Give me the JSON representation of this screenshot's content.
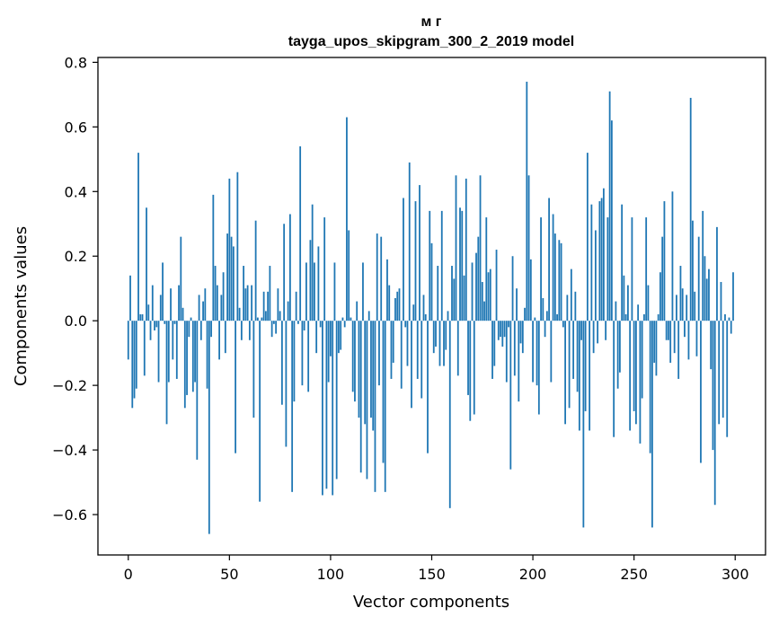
{
  "chart_data": {
    "type": "bar",
    "title_line1": "м г",
    "title_line2": "tayga_upos_skipgram_300_2_2019 model",
    "xlabel": "Vector components",
    "ylabel": "Components values",
    "xlim": [
      -15,
      315
    ],
    "ylim": [
      -0.725,
      0.815
    ],
    "xticks": [
      0,
      50,
      100,
      150,
      200,
      250,
      300
    ],
    "xtick_labels": [
      "0",
      "50",
      "100",
      "150",
      "200",
      "250",
      "300"
    ],
    "yticks": [
      -0.6,
      -0.4,
      -0.2,
      0.0,
      0.2,
      0.4,
      0.6,
      0.8
    ],
    "ytick_labels": [
      "−0.6",
      "−0.4",
      "−0.2",
      "0.0",
      "0.2",
      "0.4",
      "0.6",
      "0.8"
    ],
    "bar_color": "#1f77b4",
    "values": [
      -0.12,
      0.14,
      -0.27,
      -0.24,
      -0.21,
      0.52,
      0.02,
      0.02,
      -0.17,
      0.35,
      0.05,
      -0.06,
      0.11,
      -0.03,
      -0.02,
      -0.19,
      0.08,
      0.18,
      -0.01,
      -0.32,
      -0.19,
      0.1,
      -0.12,
      -0.01,
      -0.18,
      0.11,
      0.26,
      0.04,
      -0.27,
      -0.23,
      -0.05,
      0.01,
      -0.22,
      -0.19,
      -0.43,
      0.08,
      -0.06,
      0.06,
      0.1,
      -0.21,
      -0.66,
      -0.05,
      0.39,
      0.17,
      0.11,
      -0.12,
      0.08,
      0.15,
      -0.1,
      0.27,
      0.44,
      0.26,
      0.23,
      -0.41,
      0.46,
      0.04,
      -0.06,
      0.17,
      0.1,
      0.11,
      -0.06,
      0.11,
      -0.3,
      0.31,
      0.01,
      -0.56,
      0.01,
      0.09,
      0.03,
      0.09,
      0.17,
      -0.05,
      -0.01,
      -0.04,
      0.1,
      0.03,
      -0.26,
      0.3,
      -0.39,
      0.06,
      0.33,
      -0.53,
      -0.25,
      0.09,
      -0.01,
      0.54,
      -0.2,
      -0.03,
      0.18,
      -0.22,
      0.25,
      0.36,
      0.18,
      -0.1,
      0.23,
      -0.02,
      -0.54,
      0.32,
      -0.52,
      -0.19,
      -0.11,
      -0.54,
      0.18,
      -0.49,
      -0.1,
      -0.09,
      0.01,
      -0.02,
      0.63,
      0.28,
      0.01,
      -0.22,
      -0.25,
      0.06,
      -0.3,
      -0.47,
      0.18,
      -0.32,
      -0.49,
      0.03,
      -0.3,
      -0.34,
      -0.53,
      0.27,
      -0.2,
      0.26,
      -0.44,
      -0.53,
      0.19,
      0.11,
      -0.18,
      -0.13,
      0.07,
      0.09,
      0.1,
      -0.21,
      0.38,
      -0.02,
      -0.14,
      0.49,
      -0.27,
      0.05,
      0.37,
      -0.18,
      0.42,
      -0.24,
      0.08,
      0.02,
      -0.41,
      0.34,
      0.24,
      -0.1,
      -0.08,
      0.17,
      -0.14,
      0.34,
      -0.14,
      -0.09,
      0.03,
      -0.58,
      0.17,
      0.13,
      0.45,
      -0.17,
      0.35,
      0.34,
      0.14,
      0.44,
      -0.23,
      -0.31,
      0.18,
      -0.29,
      0.21,
      0.26,
      0.45,
      0.12,
      0.06,
      0.32,
      0.15,
      0.16,
      -0.18,
      -0.14,
      0.22,
      -0.06,
      -0.05,
      -0.08,
      -0.05,
      -0.19,
      -0.02,
      -0.46,
      0.2,
      -0.17,
      0.1,
      -0.25,
      -0.07,
      -0.1,
      0.04,
      0.74,
      0.45,
      0.19,
      -0.19,
      0.01,
      -0.2,
      -0.29,
      0.32,
      0.07,
      -0.05,
      0.03,
      0.38,
      -0.19,
      0.33,
      0.27,
      0.02,
      0.25,
      0.24,
      -0.02,
      -0.32,
      0.08,
      -0.27,
      0.16,
      -0.18,
      0.09,
      -0.22,
      -0.34,
      -0.06,
      -0.64,
      -0.28,
      0.52,
      -0.34,
      0.36,
      -0.1,
      0.28,
      -0.07,
      0.37,
      0.38,
      0.41,
      -0.06,
      0.32,
      0.71,
      0.62,
      -0.36,
      0.06,
      -0.21,
      -0.16,
      0.36,
      0.14,
      0.02,
      0.11,
      -0.34,
      0.32,
      -0.28,
      -0.32,
      0.05,
      -0.38,
      -0.24,
      0.02,
      0.32,
      0.11,
      -0.41,
      -0.64,
      -0.13,
      -0.17,
      0.02,
      0.15,
      0.26,
      0.37,
      -0.06,
      -0.06,
      -0.13,
      0.4,
      -0.1,
      0.08,
      -0.18,
      0.17,
      0.1,
      -0.05,
      0.08,
      -0.12,
      0.69,
      0.31,
      0.09,
      -0.11,
      0.26,
      -0.44,
      0.34,
      0.2,
      0.13,
      0.16,
      -0.15,
      -0.4,
      -0.57,
      0.29,
      -0.32,
      0.12,
      -0.3,
      0.02,
      -0.36,
      0.01,
      -0.04,
      0.15
    ]
  }
}
